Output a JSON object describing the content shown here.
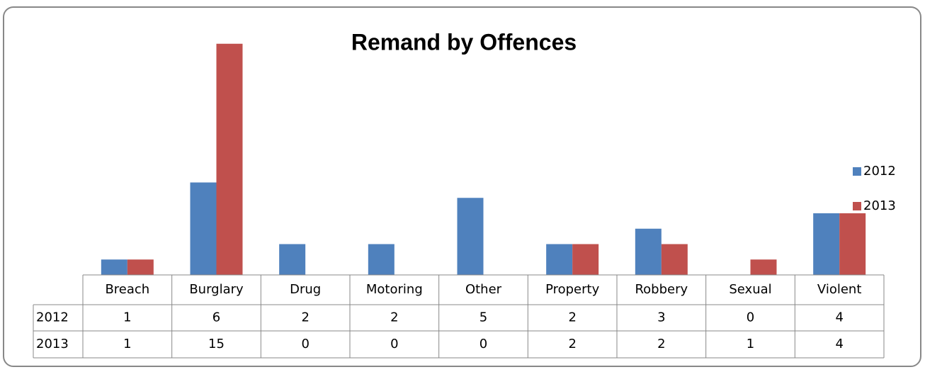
{
  "chart_data": {
    "type": "bar",
    "title": "Remand by Offences",
    "categories": [
      "Breach",
      "Burglary",
      "Drug",
      "Motoring",
      "Other",
      "Property",
      "Robbery",
      "Sexual",
      "Violent"
    ],
    "series": [
      {
        "name": "2012",
        "color": "#4f81bd",
        "values": [
          1,
          6,
          2,
          2,
          5,
          2,
          3,
          0,
          4
        ]
      },
      {
        "name": "2013",
        "color": "#c0504d",
        "values": [
          1,
          15,
          0,
          0,
          0,
          2,
          2,
          1,
          4
        ]
      }
    ],
    "ylim": [
      0,
      16
    ],
    "legend": "right",
    "data_table": true
  }
}
